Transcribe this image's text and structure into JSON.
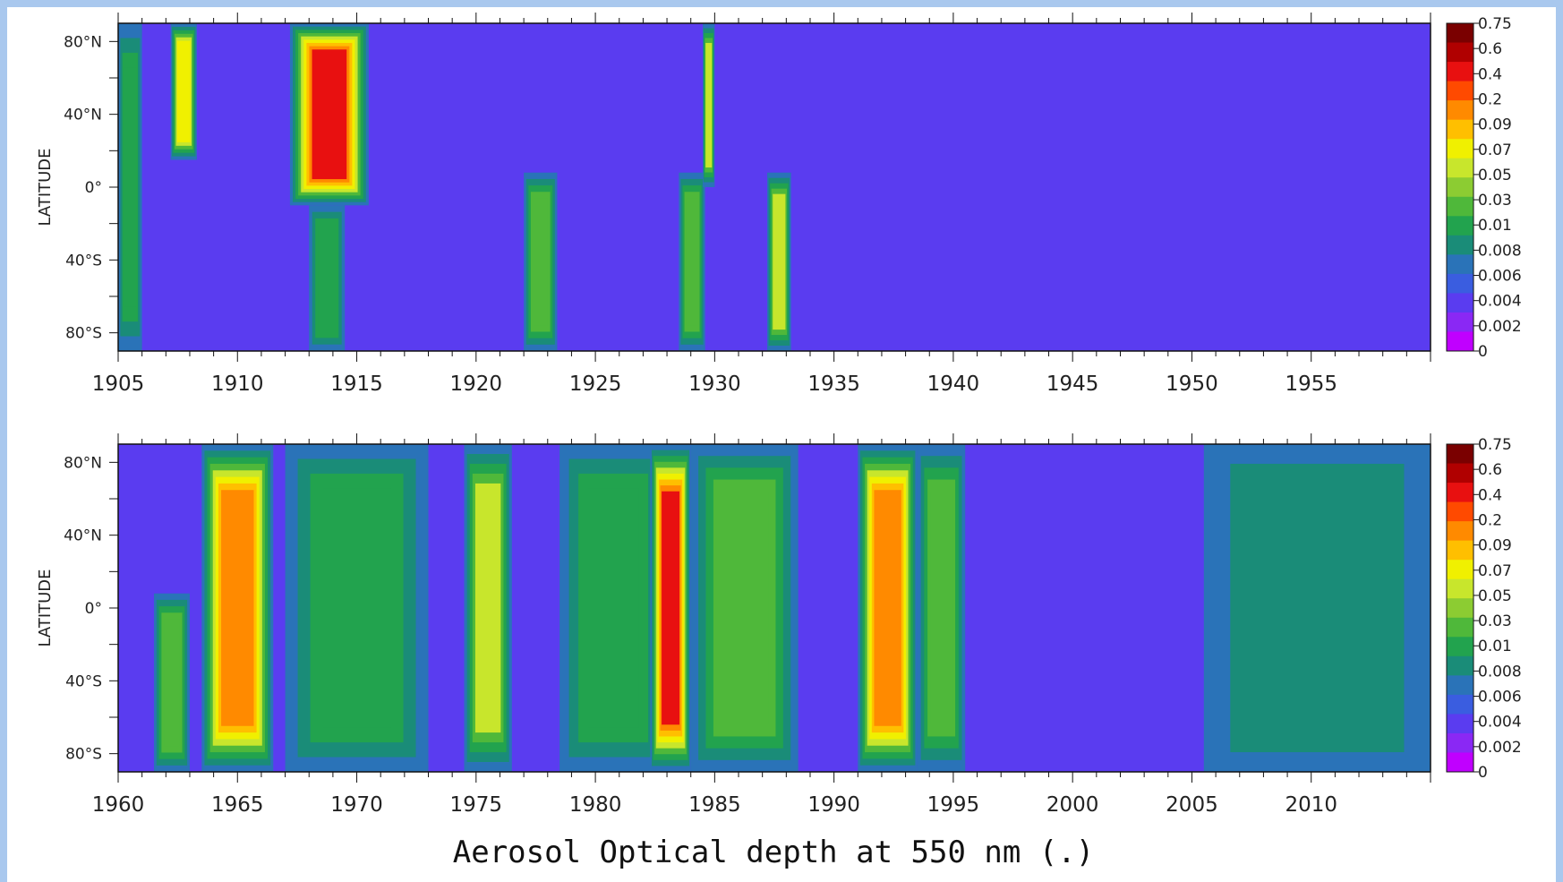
{
  "chart_data": [
    {
      "type": "heatmap",
      "ylabel": "LATITUDE",
      "x_ticks": [
        "1905",
        "1910",
        "1915",
        "1920",
        "1925",
        "1930",
        "1935",
        "1940",
        "1945",
        "1950",
        "1955"
      ],
      "xlim": [
        1905,
        1960
      ],
      "y_ticks": [
        "80°N",
        "40°N",
        "0°",
        "40°S",
        "80°S"
      ],
      "y_tick_values": [
        80,
        40,
        0,
        -40,
        -80
      ],
      "ylim": [
        -90,
        90
      ],
      "background_level": "0.004",
      "events": [
        {
          "start": 1905.0,
          "end": 1906.0,
          "lat_min": -90,
          "lat_max": 90,
          "peak": "0.01"
        },
        {
          "start": 1907.2,
          "end": 1908.3,
          "lat_min": 15,
          "lat_max": 90,
          "peak": "0.07"
        },
        {
          "start": 1912.2,
          "end": 1915.5,
          "lat_min": -10,
          "lat_max": 90,
          "peak": "0.4"
        },
        {
          "start": 1913.0,
          "end": 1914.5,
          "lat_min": -90,
          "lat_max": -10,
          "peak": "0.01"
        },
        {
          "start": 1922.0,
          "end": 1923.4,
          "lat_min": -90,
          "lat_max": 8,
          "peak": "0.03"
        },
        {
          "start": 1928.5,
          "end": 1929.6,
          "lat_min": -90,
          "lat_max": 8,
          "peak": "0.03"
        },
        {
          "start": 1929.5,
          "end": 1930.0,
          "lat_min": 0,
          "lat_max": 90,
          "peak": "0.05"
        },
        {
          "start": 1932.2,
          "end": 1933.2,
          "lat_min": -90,
          "lat_max": 8,
          "peak": "0.05"
        }
      ]
    },
    {
      "type": "heatmap",
      "ylabel": "LATITUDE",
      "x_ticks": [
        "1960",
        "1965",
        "1970",
        "1975",
        "1980",
        "1985",
        "1990",
        "1995",
        "2000",
        "2005",
        "2010"
      ],
      "xlim": [
        1960,
        2015
      ],
      "y_ticks": [
        "80°N",
        "40°N",
        "0°",
        "40°S",
        "80°S"
      ],
      "y_tick_values": [
        80,
        40,
        0,
        -40,
        -80
      ],
      "ylim": [
        -90,
        90
      ],
      "background_level": "0.004",
      "events": [
        {
          "start": 1961.5,
          "end": 1963.0,
          "lat_min": -90,
          "lat_max": 8,
          "peak": "0.03"
        },
        {
          "start": 1963.5,
          "end": 1966.5,
          "lat_min": -90,
          "lat_max": 90,
          "peak": "0.2"
        },
        {
          "start": 1967.0,
          "end": 1973.0,
          "lat_min": -90,
          "lat_max": 90,
          "peak": "0.01"
        },
        {
          "start": 1974.5,
          "end": 1976.5,
          "lat_min": -90,
          "lat_max": 90,
          "peak": "0.05"
        },
        {
          "start": 1978.5,
          "end": 1983.0,
          "lat_min": -90,
          "lat_max": 90,
          "peak": "0.01"
        },
        {
          "start": 1982.3,
          "end": 1984.0,
          "lat_min": -90,
          "lat_max": 90,
          "peak": "0.4"
        },
        {
          "start": 1984.0,
          "end": 1988.5,
          "lat_min": -90,
          "lat_max": 90,
          "peak": "0.03"
        },
        {
          "start": 1991.0,
          "end": 1993.5,
          "lat_min": -90,
          "lat_max": 90,
          "peak": "0.2"
        },
        {
          "start": 1993.5,
          "end": 1995.5,
          "lat_min": -90,
          "lat_max": 90,
          "peak": "0.03"
        },
        {
          "start": 2005.5,
          "end": 2015.0,
          "lat_min": -90,
          "lat_max": 90,
          "peak": "0.008"
        }
      ]
    }
  ],
  "colorbar": {
    "labels": [
      "0.75",
      "0.6",
      "0.4",
      "0.2",
      "0.09",
      "0.07",
      "0.05",
      "0.03",
      "0.01",
      "0.008",
      "0.006",
      "0.004",
      "0.002",
      "0"
    ],
    "colors": [
      "#7a0000",
      "#b00000",
      "#e81010",
      "#ff4a00",
      "#ff8a00",
      "#ffbf00",
      "#f0f000",
      "#c8e62c",
      "#8ccc32",
      "#4fb83a",
      "#22a34e",
      "#1a8c78",
      "#2a73b8",
      "#3a5de0",
      "#5a3cf0",
      "#8a28f4",
      "#c000ff"
    ]
  },
  "footer_label": "Aerosol Optical depth at 550 nm (.)"
}
